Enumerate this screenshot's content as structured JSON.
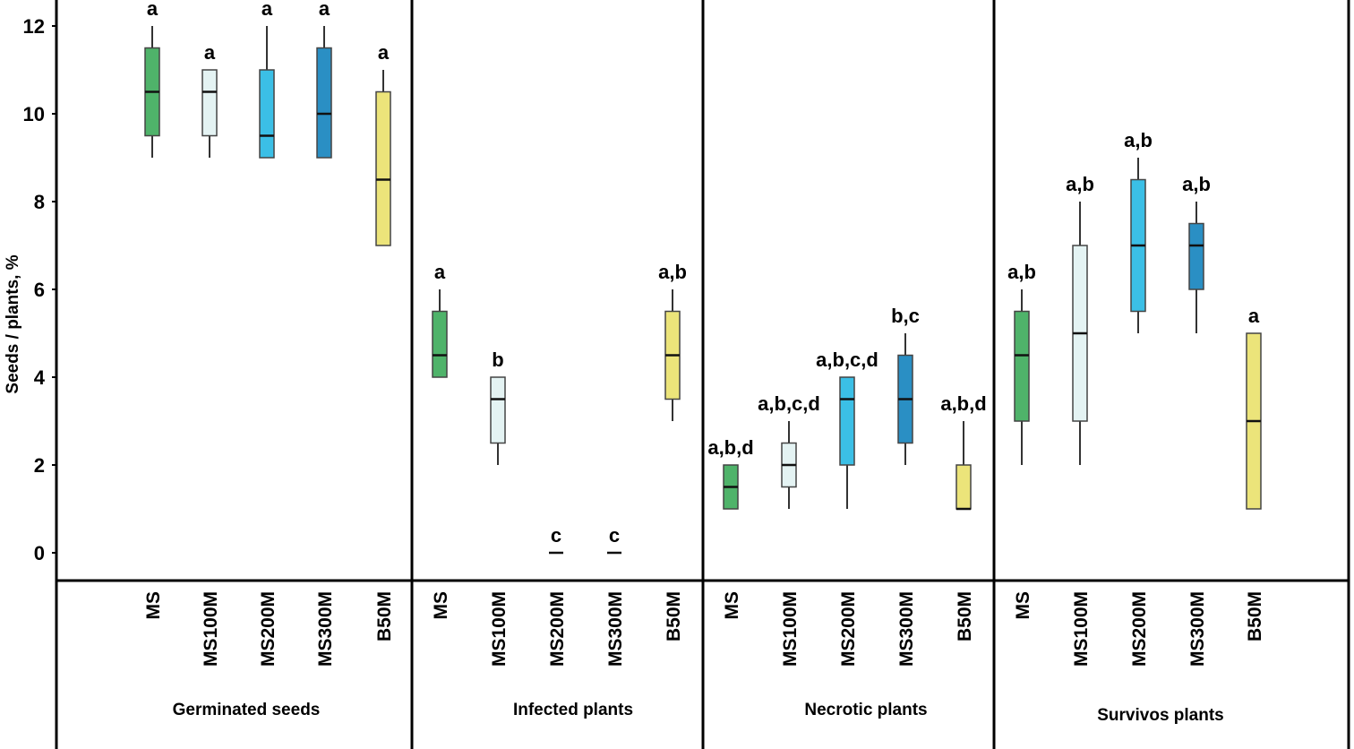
{
  "chart_data": {
    "type": "box",
    "ylabel": "Seeds / plants, %",
    "ylim": [
      -0.6,
      12.4
    ],
    "yticks": [
      0,
      2,
      4,
      6,
      8,
      10,
      12
    ],
    "categories": [
      "MS",
      "MS100M",
      "MS200M",
      "MS300M",
      "B50M"
    ],
    "colors": {
      "MS": "#4fb36a",
      "MS100M": "#e4f3f3",
      "MS200M": "#3bbfe6",
      "MS300M": "#2a8fc4",
      "B50M": "#ece47a"
    },
    "groups": [
      {
        "name": "Germinated seeds",
        "boxes": [
          {
            "category": "MS",
            "min": 9,
            "q1": 9.5,
            "median": 10.5,
            "q3": 11.5,
            "max": 12,
            "sig": "a"
          },
          {
            "category": "MS100M",
            "min": 9,
            "q1": 9.5,
            "median": 10.5,
            "q3": 11,
            "max": 11,
            "sig": "a"
          },
          {
            "category": "MS200M",
            "min": 9,
            "q1": 9,
            "median": 9.5,
            "q3": 11,
            "max": 12,
            "sig": "a"
          },
          {
            "category": "MS300M",
            "min": 9,
            "q1": 9,
            "median": 10,
            "q3": 11.5,
            "max": 12,
            "sig": "a"
          },
          {
            "category": "B50M",
            "min": 7,
            "q1": 7,
            "median": 8.5,
            "q3": 10.5,
            "max": 11,
            "sig": "a"
          }
        ]
      },
      {
        "name": "Infected plants",
        "boxes": [
          {
            "category": "MS",
            "min": 4,
            "q1": 4,
            "median": 4.5,
            "q3": 5.5,
            "max": 6,
            "sig": "a"
          },
          {
            "category": "MS100M",
            "min": 2,
            "q1": 2.5,
            "median": 3.5,
            "q3": 4,
            "max": 4,
            "sig": "b"
          },
          {
            "category": "MS200M",
            "min": 0,
            "q1": 0,
            "median": 0,
            "q3": 0,
            "max": 0,
            "sig": "c"
          },
          {
            "category": "MS300M",
            "min": 0,
            "q1": 0,
            "median": 0,
            "q3": 0,
            "max": 0,
            "sig": "c"
          },
          {
            "category": "B50M",
            "min": 3,
            "q1": 3.5,
            "median": 4.5,
            "q3": 5.5,
            "max": 6,
            "sig": "a,b"
          }
        ]
      },
      {
        "name": "Necrotic plants",
        "boxes": [
          {
            "category": "MS",
            "min": 1,
            "q1": 1,
            "median": 1.5,
            "q3": 2,
            "max": 2,
            "sig": "a,b,d"
          },
          {
            "category": "MS100M",
            "min": 1,
            "q1": 1.5,
            "median": 2,
            "q3": 2.5,
            "max": 3,
            "sig": "a,b,c,d"
          },
          {
            "category": "MS200M",
            "min": 1,
            "q1": 2,
            "median": 3.5,
            "q3": 4,
            "max": 4,
            "sig": "a,b,c,d"
          },
          {
            "category": "MS300M",
            "min": 2,
            "q1": 2.5,
            "median": 3.5,
            "q3": 4.5,
            "max": 5,
            "sig": "b,c"
          },
          {
            "category": "B50M",
            "min": 1,
            "q1": 1,
            "median": 1,
            "q3": 2,
            "max": 3,
            "sig": "a,b,d"
          }
        ]
      },
      {
        "name": "Survivos plants",
        "boxes": [
          {
            "category": "MS",
            "min": 2,
            "q1": 3,
            "median": 4.5,
            "q3": 5.5,
            "max": 6,
            "sig": "a,b"
          },
          {
            "category": "MS100M",
            "min": 2,
            "q1": 3,
            "median": 5,
            "q3": 7,
            "max": 8,
            "sig": "a,b"
          },
          {
            "category": "MS200M",
            "min": 5,
            "q1": 5.5,
            "median": 7,
            "q3": 8.5,
            "max": 9,
            "sig": "a,b"
          },
          {
            "category": "MS300M",
            "min": 5,
            "q1": 6,
            "median": 7,
            "q3": 7.5,
            "max": 8,
            "sig": "a,b"
          },
          {
            "category": "B50M",
            "min": 1,
            "q1": 1,
            "median": 3,
            "q3": 5,
            "max": 5,
            "sig": "a"
          }
        ]
      }
    ]
  }
}
